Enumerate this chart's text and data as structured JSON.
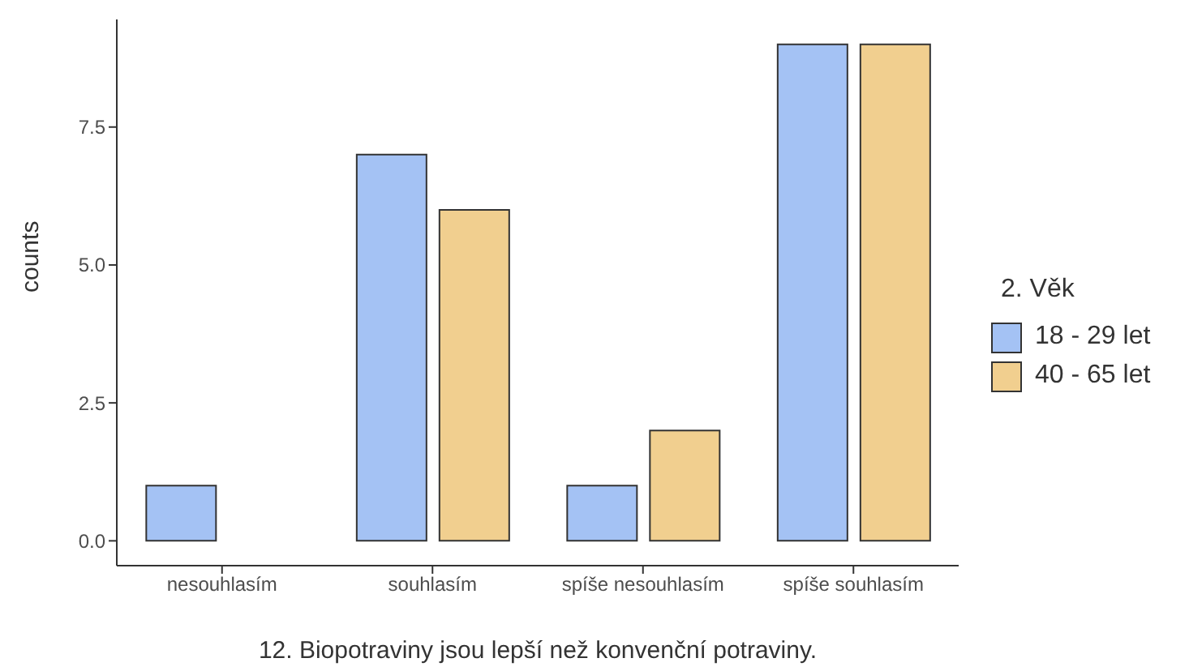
{
  "chart_data": {
    "type": "bar",
    "xlabel": "12.  Biopotraviny jsou lepší než konvenční potraviny.",
    "ylabel": "counts",
    "legend_title": "2. Věk",
    "categories": [
      "nesouhlasím",
      "souhlasím",
      "spíše nesouhlasím",
      "spíše souhlasím"
    ],
    "series": [
      {
        "name": "18 - 29 let",
        "color": "#a4c2f4",
        "values": [
          1,
          7,
          1,
          9
        ]
      },
      {
        "name": "40 - 65 let",
        "color": "#f1cf8f",
        "values": [
          0,
          6,
          2,
          9
        ]
      }
    ],
    "ylim": [
      -0.45,
      9.45
    ],
    "yticks": [
      {
        "value": 0,
        "label": "0.0"
      },
      {
        "value": 2.5,
        "label": "2.5"
      },
      {
        "value": 5,
        "label": "5.0"
      },
      {
        "value": 7.5,
        "label": "7.5"
      }
    ],
    "grid": false,
    "legend": "right"
  }
}
